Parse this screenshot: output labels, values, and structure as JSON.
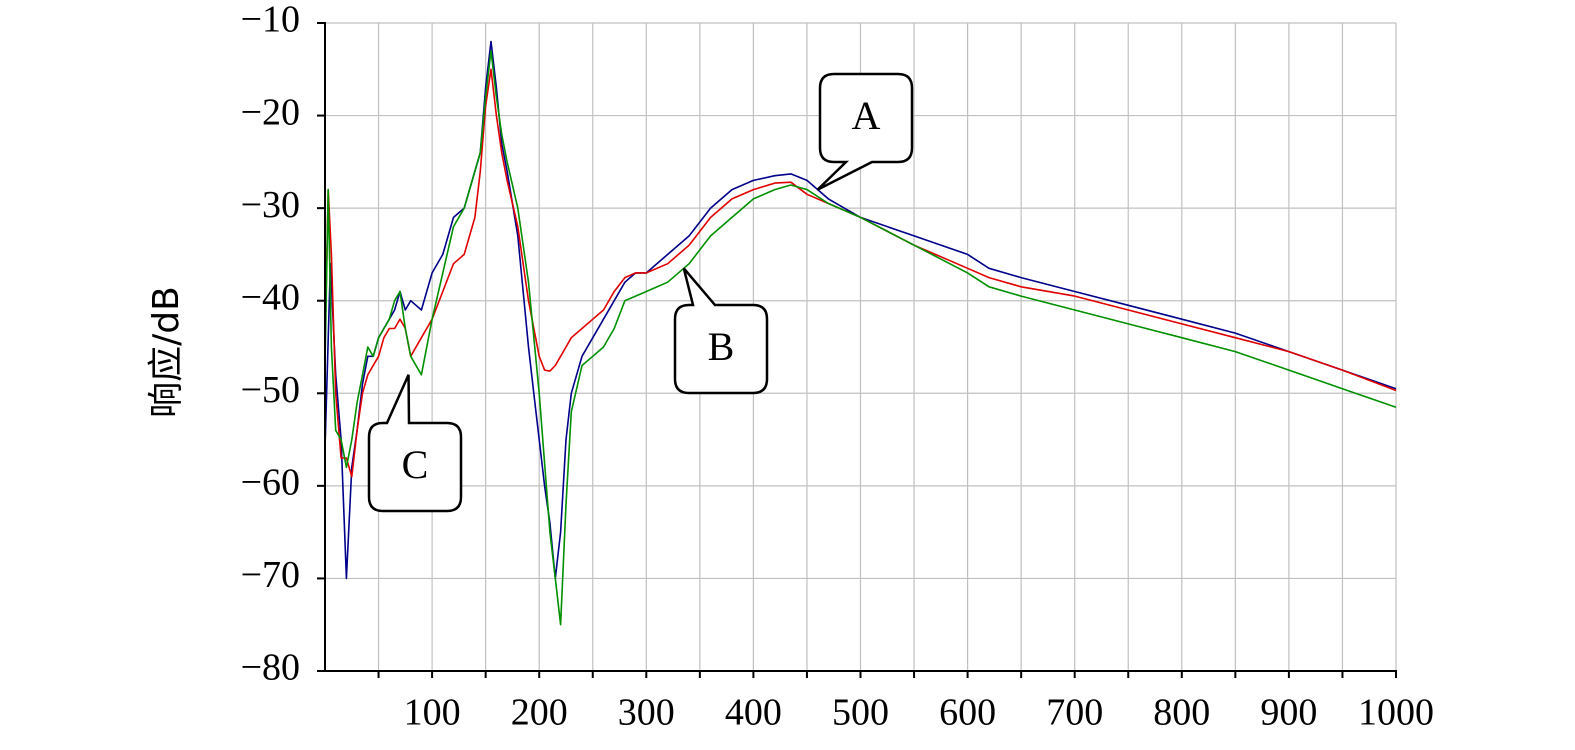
{
  "chart_data": {
    "type": "line",
    "title": "",
    "xlabel": "",
    "ylabel": "响应/dB",
    "xlim": [
      0,
      1000
    ],
    "ylim": [
      -80,
      -10
    ],
    "xticks": [
      100,
      200,
      300,
      400,
      500,
      600,
      700,
      800,
      900,
      1000
    ],
    "yticks": [
      -10,
      -20,
      -30,
      -40,
      -50,
      -60,
      -70,
      -80
    ],
    "ytick_labels": [
      "−10",
      "−20",
      "−30",
      "−40",
      "−50",
      "−60",
      "−70",
      "−80"
    ],
    "grid": true,
    "series": [
      {
        "color": "#00008b",
        "x": [
          0,
          5,
          10,
          15,
          20,
          25,
          30,
          35,
          40,
          45,
          50,
          55,
          60,
          65,
          70,
          75,
          80,
          90,
          100,
          110,
          120,
          130,
          140,
          145,
          150,
          155,
          160,
          165,
          170,
          180,
          190,
          195,
          200,
          205,
          210,
          215,
          220,
          225,
          230,
          240,
          250,
          260,
          270,
          280,
          290,
          300,
          320,
          340,
          360,
          380,
          400,
          420,
          435,
          450,
          470,
          500,
          550,
          600,
          620,
          650,
          700,
          750,
          800,
          850,
          900,
          950,
          1000
        ],
        "y": [
          -56,
          -36,
          -48,
          -55,
          -70,
          -58,
          -54,
          -49,
          -46,
          -46,
          -44,
          -43,
          -42,
          -41,
          -39,
          -41,
          -40,
          -41,
          -37,
          -35,
          -31,
          -30,
          -26,
          -24,
          -17,
          -12,
          -17,
          -23,
          -26,
          -33,
          -45,
          -50,
          -55,
          -60,
          -64,
          -70,
          -65,
          -55,
          -50,
          -46,
          -44,
          -42,
          -40,
          -38,
          -37,
          -37,
          -35,
          -33,
          -30,
          -28,
          -27,
          -26.5,
          -26.3,
          -27,
          -29,
          -31,
          -33,
          -35,
          -36.5,
          -37.5,
          -39,
          -40.5,
          -42,
          -43.5,
          -45.5,
          -47.5,
          -49.5
        ]
      },
      {
        "color": "#e00000",
        "x": [
          0,
          3,
          6,
          10,
          15,
          20,
          25,
          30,
          35,
          40,
          45,
          50,
          55,
          60,
          65,
          70,
          75,
          80,
          90,
          100,
          110,
          120,
          130,
          140,
          145,
          150,
          155,
          160,
          165,
          170,
          180,
          190,
          200,
          205,
          210,
          215,
          220,
          225,
          230,
          240,
          250,
          260,
          270,
          280,
          290,
          300,
          320,
          340,
          360,
          380,
          400,
          420,
          435,
          450,
          470,
          500,
          550,
          600,
          620,
          650,
          700,
          750,
          800,
          850,
          900,
          950,
          1000
        ],
        "y": [
          -45,
          -28,
          -35,
          -50,
          -57,
          -57,
          -59,
          -54,
          -50,
          -48,
          -47,
          -46,
          -44,
          -43,
          -43,
          -42,
          -43,
          -46,
          -44,
          -42,
          -39,
          -36,
          -35,
          -31,
          -26,
          -19,
          -15,
          -20,
          -24,
          -27,
          -32,
          -40,
          -46,
          -47.5,
          -47.6,
          -47,
          -46,
          -45,
          -44,
          -43,
          -42,
          -41,
          -39,
          -37.5,
          -37,
          -37,
          -36,
          -34,
          -31,
          -29,
          -28,
          -27.3,
          -27.2,
          -28.5,
          -29.5,
          -31,
          -34,
          -36.5,
          -37.5,
          -38.5,
          -39.5,
          -41,
          -42.5,
          -44,
          -45.5,
          -47.5,
          -49.7
        ]
      },
      {
        "color": "#009000",
        "x": [
          0,
          3,
          6,
          10,
          15,
          20,
          25,
          30,
          35,
          40,
          45,
          50,
          55,
          60,
          65,
          70,
          75,
          80,
          90,
          100,
          110,
          120,
          130,
          140,
          145,
          150,
          155,
          160,
          165,
          170,
          180,
          190,
          200,
          210,
          215,
          220,
          225,
          230,
          240,
          250,
          260,
          270,
          280,
          290,
          300,
          320,
          340,
          360,
          380,
          400,
          420,
          435,
          450,
          470,
          500,
          550,
          600,
          620,
          650,
          700,
          750,
          800,
          850,
          900,
          950,
          1000
        ],
        "y": [
          -47,
          -28,
          -45,
          -54,
          -55,
          -58,
          -55,
          -51,
          -48,
          -45,
          -46,
          -44,
          -43,
          -42,
          -40,
          -39,
          -43,
          -46,
          -48,
          -42,
          -37,
          -32,
          -30,
          -26,
          -24,
          -18,
          -13,
          -18,
          -22,
          -25,
          -30,
          -38,
          -50,
          -65,
          -70,
          -75,
          -62,
          -52,
          -47,
          -46,
          -45,
          -43,
          -40,
          -39.5,
          -39,
          -38,
          -36,
          -33,
          -31,
          -29,
          -28,
          -27.5,
          -28,
          -29.5,
          -31,
          -34,
          -37,
          -38.5,
          -39.5,
          -41,
          -42.5,
          -44,
          -45.5,
          -47.5,
          -49.5,
          -51.5
        ]
      }
    ],
    "annotations": [
      {
        "label": "A",
        "x": 460,
        "y": -28
      },
      {
        "label": "B",
        "x": 335,
        "y": -36.5
      },
      {
        "label": "C",
        "x": 78,
        "y": -48
      }
    ]
  }
}
